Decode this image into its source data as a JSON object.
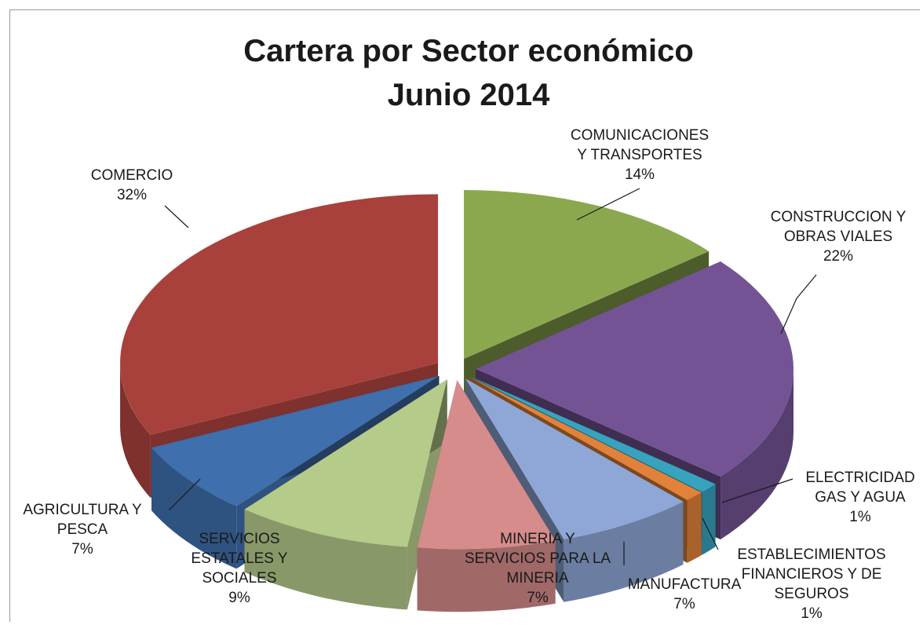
{
  "chart_data": {
    "type": "pie",
    "title": "Cartera por Sector económico",
    "subtitle": "Junio 2014",
    "style": "3d-exploded",
    "slices": [
      {
        "label": "COMUNICACIONES Y TRANSPORTES",
        "lines": [
          "COMUNICACIONES",
          "Y TRANSPORTES"
        ],
        "percent_label": "14%",
        "value": 14,
        "color": "#8BA84E"
      },
      {
        "label": "CONSTRUCCION Y OBRAS VIALES",
        "lines": [
          "CONSTRUCCION Y",
          "OBRAS VIALES"
        ],
        "percent_label": "22%",
        "value": 22,
        "color": "#735394"
      },
      {
        "label": "ELECTRICIDAD GAS Y AGUA",
        "lines": [
          "ELECTRICIDAD",
          "GAS Y AGUA"
        ],
        "percent_label": "1%",
        "value": 1,
        "color": "#37A3BE"
      },
      {
        "label": "ESTABLECIMIENTOS FINANCIEROS Y DE SEGUROS",
        "lines": [
          "ESTABLECIMIENTOS",
          "FINANCIEROS Y DE",
          "SEGUROS"
        ],
        "percent_label": "1%",
        "value": 1,
        "color": "#E2823A"
      },
      {
        "label": "MANUFACTURA",
        "lines": [
          "MANUFACTURA"
        ],
        "percent_label": "7%",
        "value": 7,
        "color": "#8EA7D6"
      },
      {
        "label": "MINERIA Y SERVICIOS PARA LA MINERIA",
        "lines": [
          "MINERIA Y",
          "SERVICIOS PARA LA",
          "MINERIA"
        ],
        "percent_label": "7%",
        "value": 7,
        "color": "#D58C8B"
      },
      {
        "label": "SERVICIOS ESTATALES Y SOCIALES",
        "lines": [
          "SERVICIOS",
          "ESTATALES Y",
          "SOCIALES"
        ],
        "percent_label": "9%",
        "value": 9,
        "color": "#B5CB8A"
      },
      {
        "label": "AGRICULTURA Y PESCA",
        "lines": [
          "AGRICULTURA Y",
          "PESCA"
        ],
        "percent_label": "7%",
        "value": 7,
        "color": "#3F6FAC"
      },
      {
        "label": "COMERCIO",
        "lines": [
          "COMERCIO"
        ],
        "percent_label": "32%",
        "value": 32,
        "color": "#A8413C"
      }
    ],
    "legend": "none",
    "data_labels": "outside with leader lines"
  }
}
